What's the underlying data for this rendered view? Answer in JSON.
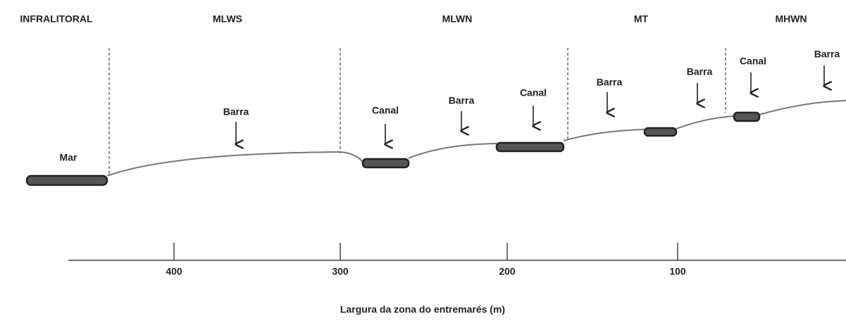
{
  "zones": [
    "INFRALITORAL",
    "MLWS",
    "MLWN",
    "MT",
    "MHWN"
  ],
  "features": [
    "Mar",
    "Barra",
    "Canal",
    "Barra",
    "Canal",
    "Barra",
    "Barra",
    "Canal",
    "Barra"
  ],
  "axis": {
    "label": "Largura da zona do entremarés (m)",
    "ticks": [
      400,
      300,
      200,
      100
    ]
  }
}
